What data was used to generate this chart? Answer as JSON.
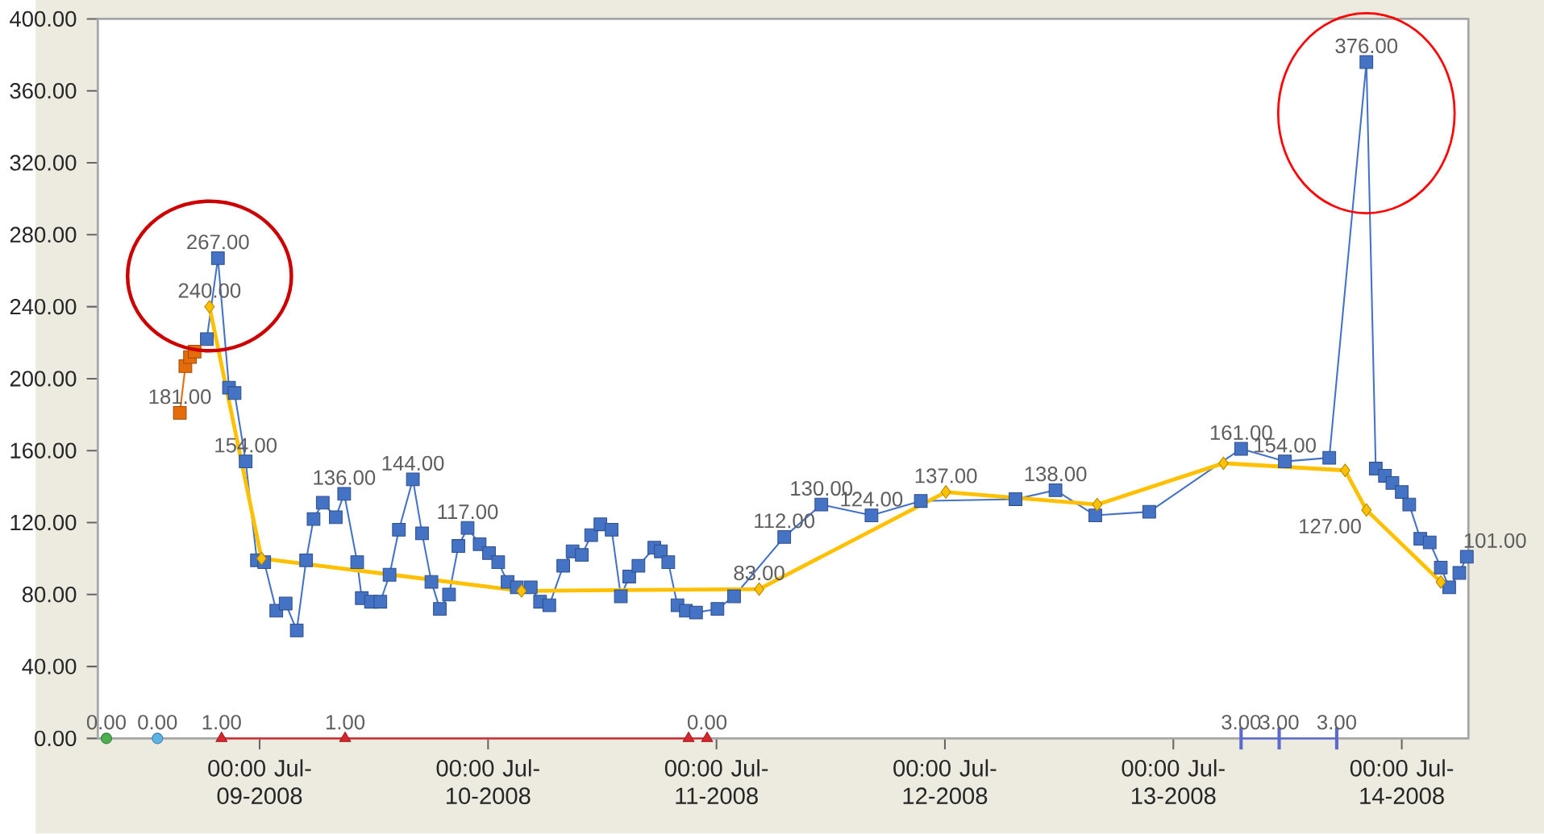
{
  "chart_data": {
    "type": "line",
    "xlim": [
      "2008-07-08T07:00",
      "2008-07-14T07:00"
    ],
    "xticks": [
      {
        "value": "2008-07-09T00:00",
        "label": "00:00 Jul-09-2008"
      },
      {
        "value": "2008-07-10T00:00",
        "label": "00:00 Jul-10-2008"
      },
      {
        "value": "2008-07-11T00:00",
        "label": "00:00 Jul-11-2008"
      },
      {
        "value": "2008-07-12T00:00",
        "label": "00:00 Jul-12-2008"
      },
      {
        "value": "2008-07-13T00:00",
        "label": "00:00 Jul-13-2008"
      },
      {
        "value": "2008-07-14T00:00",
        "label": "00:00 Jul-14-2008"
      }
    ],
    "ylim": [
      0,
      400
    ],
    "yticks": [
      {
        "value": 0,
        "label": "0.00"
      },
      {
        "value": 40,
        "label": "40.00"
      },
      {
        "value": 80,
        "label": "80.00"
      },
      {
        "value": 120,
        "label": "120.00"
      },
      {
        "value": 160,
        "label": "160.00"
      },
      {
        "value": 200,
        "label": "200.00"
      },
      {
        "value": 240,
        "label": "240.00"
      },
      {
        "value": 280,
        "label": "280.00"
      },
      {
        "value": 320,
        "label": "320.00"
      },
      {
        "value": 360,
        "label": "360.00"
      },
      {
        "value": 400,
        "label": "400.00"
      }
    ],
    "annotations": [
      {
        "text": "1.00",
        "x": "2008-07-08T20:00",
        "y": 0
      },
      {
        "text": "1.00",
        "x": "2008-07-09T08:59",
        "y": 0
      },
      {
        "text": "3.00",
        "x": "2008-07-13T07:07",
        "y": 0
      },
      {
        "text": "3.00",
        "x": "2008-07-13T11:07",
        "y": 0
      },
      {
        "text": "3.00",
        "x": "2008-07-13T17:10",
        "y": 0
      }
    ],
    "series": [
      {
        "color": "#4472c4",
        "marker": "square",
        "line_style": "solid",
        "x": [
          "2008-07-08T18:27",
          "2008-07-08T19:37",
          "2008-07-08T20:47",
          "2008-07-08T21:22",
          "2008-07-08T22:32",
          "2008-07-08T23:43",
          "2008-07-09T00:29",
          "2008-07-09T01:45",
          "2008-07-09T02:44",
          "2008-07-09T03:54",
          "2008-07-09T04:53",
          "2008-07-09T05:40",
          "2008-07-09T06:38",
          "2008-07-09T08:00",
          "2008-07-09T08:53",
          "2008-07-09T10:15",
          "2008-07-09T10:44",
          "2008-07-09T11:42",
          "2008-07-09T12:41",
          "2008-07-09T13:39",
          "2008-07-09T14:38",
          "2008-07-09T16:06",
          "2008-07-09T17:04",
          "2008-07-09T18:03",
          "2008-07-09T18:56",
          "2008-07-09T19:54",
          "2008-07-09T20:53",
          "2008-07-09T21:51",
          "2008-07-09T23:07",
          "2008-07-10T00:06",
          "2008-07-10T01:04",
          "2008-07-10T02:03",
          "2008-07-10T03:01",
          "2008-07-10T04:29",
          "2008-07-10T05:28",
          "2008-07-10T06:26",
          "2008-07-10T07:54",
          "2008-07-10T08:53",
          "2008-07-10T09:51",
          "2008-07-10T10:50",
          "2008-07-10T11:48",
          "2008-07-10T12:59",
          "2008-07-10T13:57",
          "2008-07-10T14:50",
          "2008-07-10T15:48",
          "2008-07-10T17:28",
          "2008-07-10T18:09",
          "2008-07-10T18:56",
          "2008-07-10T19:54",
          "2008-07-10T20:47",
          "2008-07-10T21:51",
          "2008-07-11T00:06",
          "2008-07-11T01:51",
          "2008-07-11T07:07",
          "2008-07-11T11:01",
          "2008-07-11T16:17",
          "2008-07-11T21:28",
          "2008-07-12T07:25",
          "2008-07-12T11:37",
          "2008-07-12T15:48",
          "2008-07-12T21:28",
          "2008-07-13T07:07",
          "2008-07-13T11:43",
          "2008-07-13T16:23",
          "2008-07-13T20:17",
          "2008-07-13T21:16",
          "2008-07-13T22:14",
          "2008-07-13T23:01",
          "2008-07-14T00:00",
          "2008-07-14T00:47",
          "2008-07-14T01:57",
          "2008-07-14T02:56",
          "2008-07-14T04:06",
          "2008-07-14T04:59",
          "2008-07-14T06:03",
          "2008-07-14T06:50"
        ],
        "values": [
          222,
          267,
          195,
          192,
          154,
          99,
          98,
          71,
          75,
          60,
          99,
          122,
          131,
          123,
          136,
          98,
          78,
          76,
          76,
          91,
          116,
          144,
          114,
          87,
          72,
          80,
          107,
          117,
          108,
          103,
          98,
          87,
          84,
          84,
          76,
          74,
          96,
          104,
          102,
          113,
          119,
          116,
          79,
          90,
          96,
          106,
          104,
          98,
          74,
          71,
          70,
          72,
          79,
          112,
          130,
          124,
          132,
          133,
          138,
          124,
          126,
          161,
          154,
          156,
          376,
          150,
          146,
          142,
          137,
          130,
          111,
          109,
          95,
          84,
          92,
          101
        ],
        "value_labels": [
          null,
          "267.00",
          null,
          null,
          "154.00",
          null,
          null,
          null,
          null,
          null,
          null,
          null,
          null,
          null,
          "136.00",
          null,
          null,
          null,
          null,
          null,
          null,
          "144.00",
          null,
          null,
          null,
          null,
          null,
          "117.00",
          null,
          null,
          null,
          null,
          null,
          null,
          null,
          null,
          null,
          null,
          null,
          null,
          null,
          null,
          null,
          null,
          null,
          null,
          null,
          null,
          null,
          null,
          null,
          null,
          null,
          "112.00",
          "130.00",
          "124.00",
          null,
          null,
          "138.00",
          null,
          null,
          "161.00",
          "154.00",
          null,
          "376.00",
          null,
          null,
          null,
          null,
          null,
          null,
          null,
          null,
          null,
          null,
          "101.00"
        ]
      },
      {
        "color": "#ffc000",
        "marker": "diamond",
        "line_style": "solid",
        "x": [
          "2008-07-08T18:44",
          "2008-07-09T00:12",
          "2008-07-10T03:31",
          "2008-07-11T04:29",
          "2008-07-12T00:06",
          "2008-07-12T16:00",
          "2008-07-13T05:16",
          "2008-07-13T18:03",
          "2008-07-13T20:17",
          "2008-07-14T04:06"
        ],
        "values": [
          240,
          100,
          82,
          83,
          137,
          130,
          153,
          149,
          127,
          87
        ],
        "value_labels": [
          "240.00",
          null,
          null,
          "83.00",
          "137.00",
          null,
          null,
          null,
          "127.00",
          null
        ]
      },
      {
        "color": "#e46c0a",
        "marker": "square",
        "line_style": "solid",
        "x": [
          "2008-07-08T15:37",
          "2008-07-08T16:12",
          "2008-07-08T16:41",
          "2008-07-08T17:10"
        ],
        "values": [
          181,
          207,
          212,
          215
        ],
        "value_labels": [
          "181.00",
          null,
          null,
          null
        ]
      },
      {
        "color": "#4caf50",
        "marker": "circle",
        "line_style": "solid",
        "x": [
          "2008-07-08T07:54"
        ],
        "values": [
          0
        ],
        "value_labels": [
          "0.00"
        ]
      },
      {
        "color": "#5bb4e8",
        "marker": "circle",
        "line_style": "solid",
        "x": [
          "2008-07-08T13:16"
        ],
        "values": [
          0
        ],
        "value_labels": [
          "0.00"
        ]
      },
      {
        "color": "#d9262e",
        "marker": "triangle",
        "line_style": "solid",
        "x": [
          "2008-07-08T20:00",
          "2008-07-09T08:59",
          "2008-07-10T21:04",
          "2008-07-10T23:01"
        ],
        "values": [
          0,
          0,
          0,
          0
        ],
        "value_labels": [
          null,
          null,
          null,
          "0.00"
        ]
      },
      {
        "color": "#5b6ad0",
        "marker": "none",
        "line_style": "solid",
        "x": [
          "2008-07-13T07:07",
          "2008-07-13T11:07",
          "2008-07-13T17:10"
        ],
        "values": [
          0,
          0,
          0
        ]
      }
    ]
  }
}
